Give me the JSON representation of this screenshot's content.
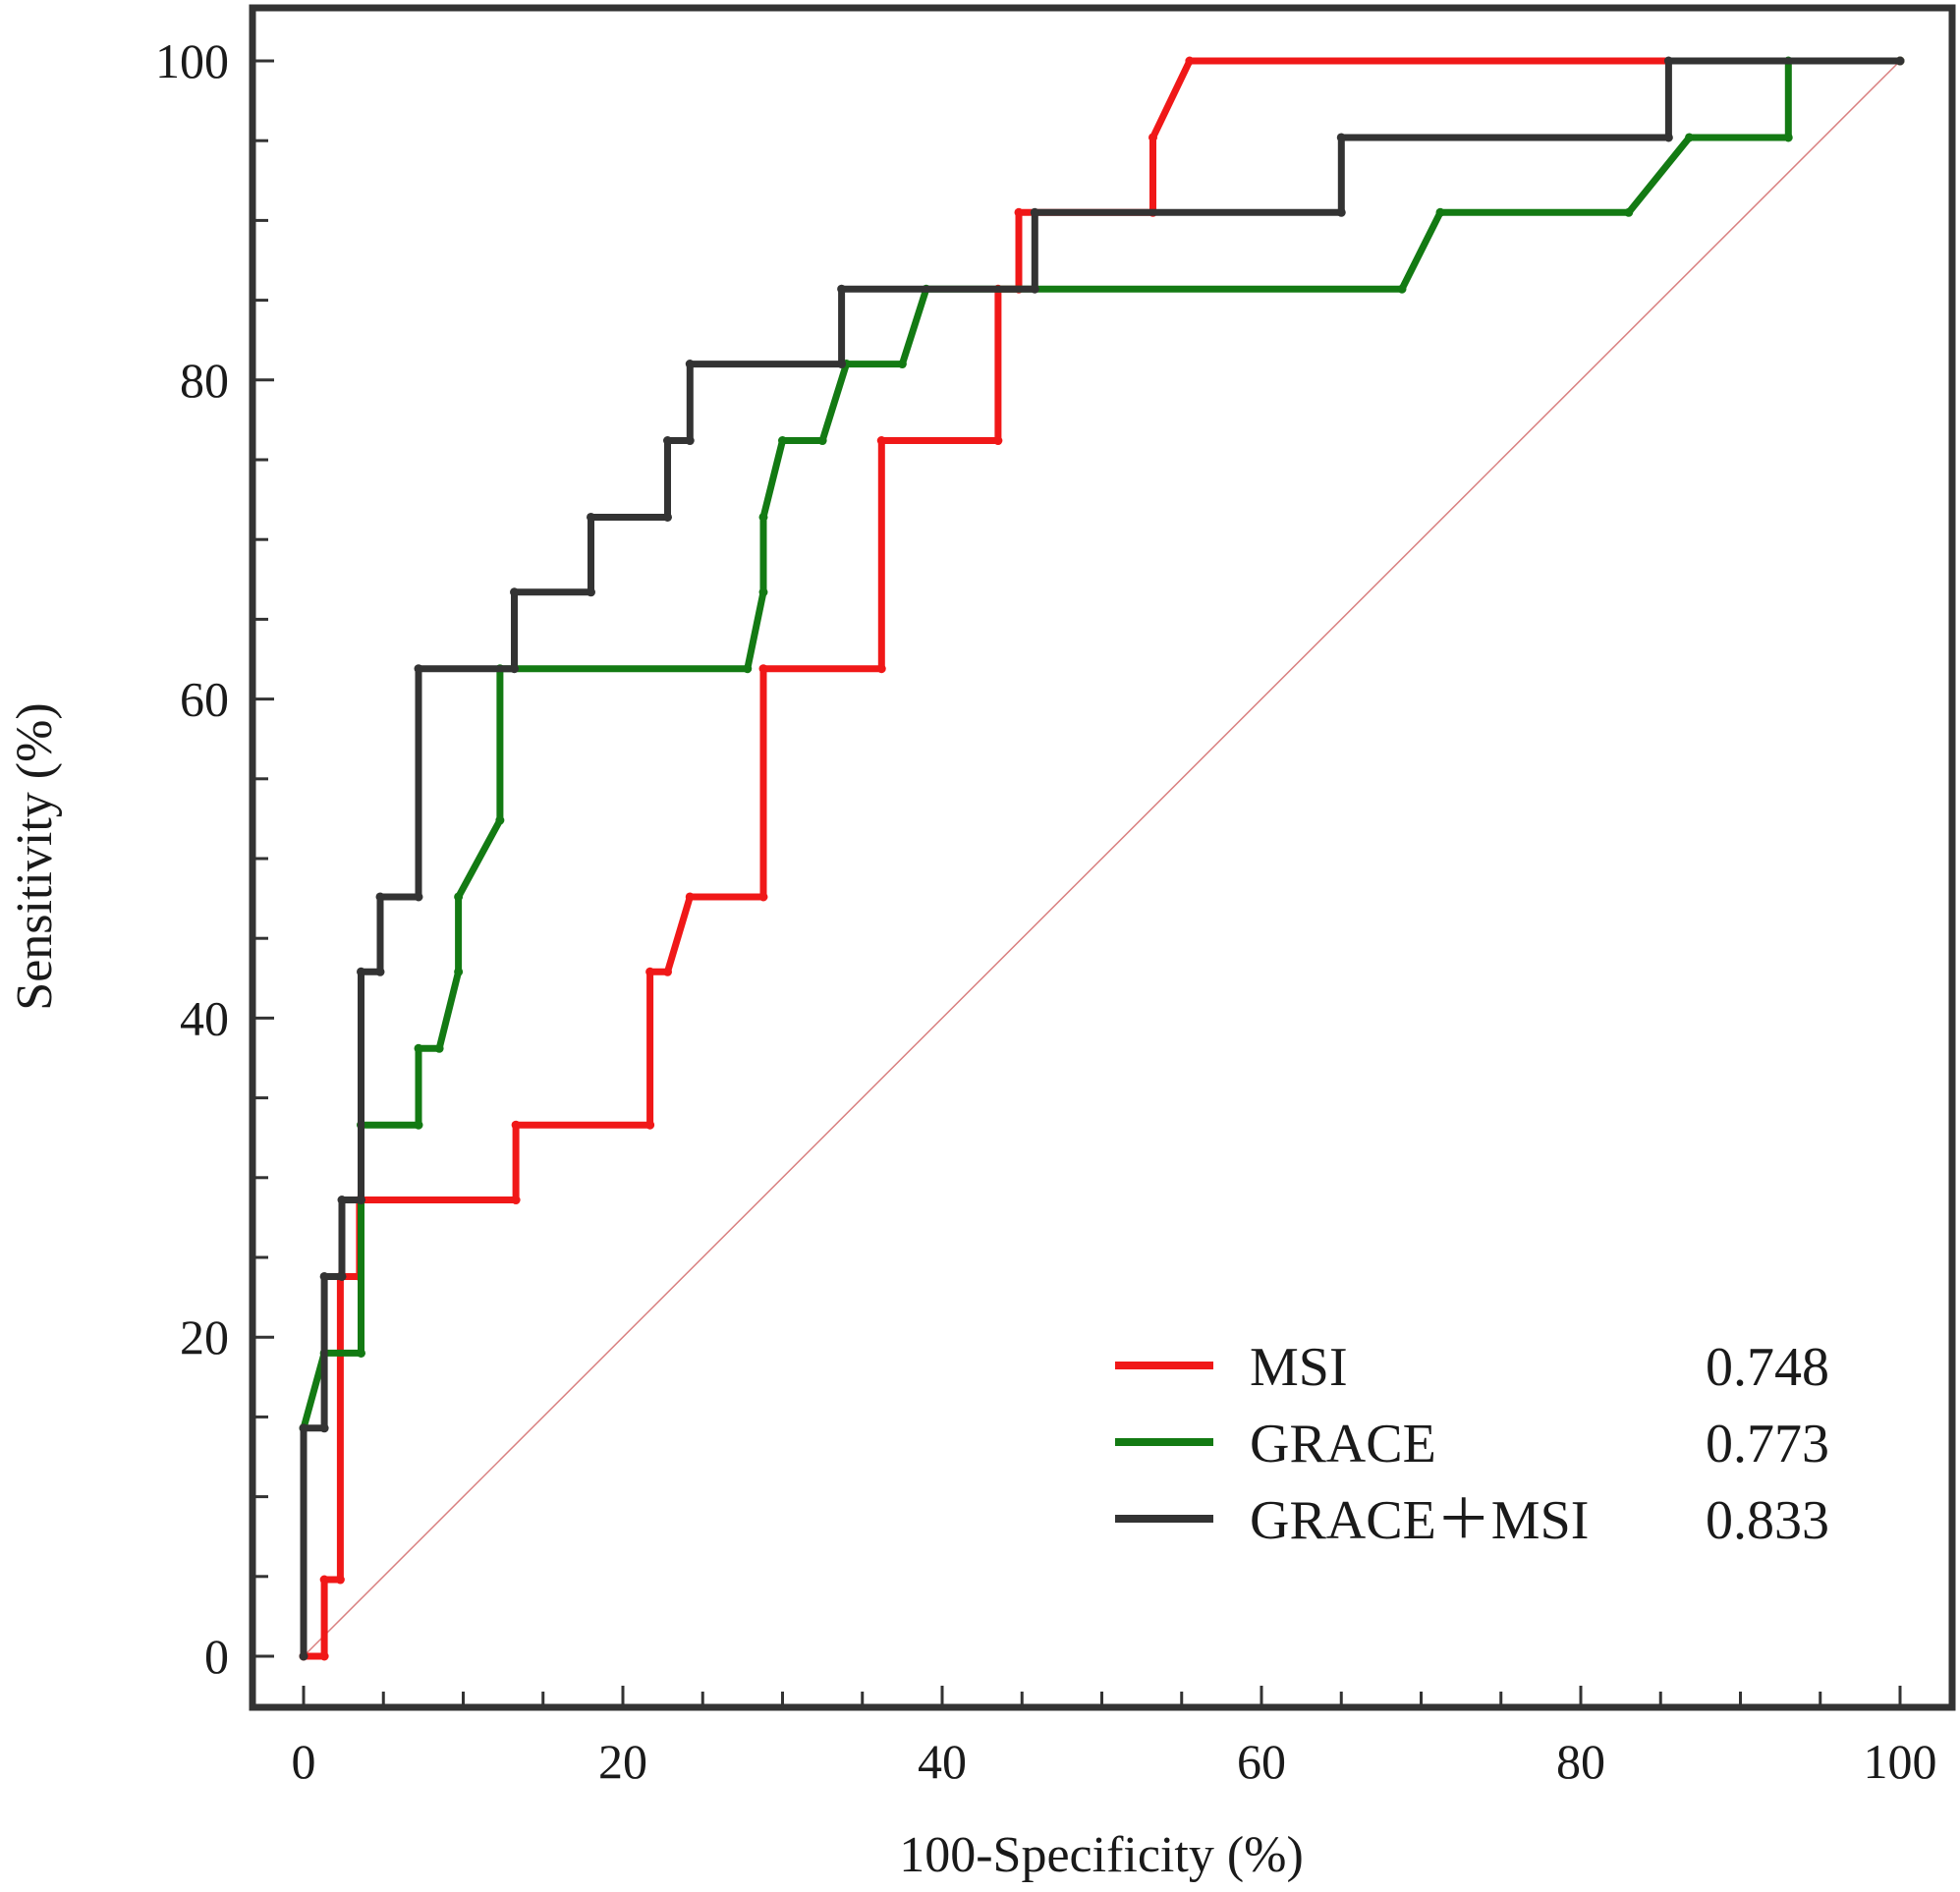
{
  "chart_data": {
    "type": "line",
    "title": "",
    "xlabel": "100-Specificity (%)",
    "ylabel": "Sensitivity (%)",
    "xlim": [
      0,
      100
    ],
    "ylim": [
      0,
      100
    ],
    "x_ticks": [
      "0",
      "20",
      "40",
      "60",
      "80",
      "100"
    ],
    "y_ticks": [
      "0",
      "20",
      "40",
      "60",
      "80",
      "100"
    ],
    "x_tick_values": [
      0,
      20,
      40,
      60,
      80,
      100
    ],
    "y_tick_values": [
      0,
      20,
      40,
      60,
      80,
      100
    ],
    "x_minor_step": 5,
    "y_minor_step": 5,
    "reference_line": {
      "x": [
        0,
        100
      ],
      "y": [
        0,
        100
      ],
      "color": "#d98080"
    },
    "legend_position": "bottom-right",
    "series": [
      {
        "name": "MSI",
        "auc": "0.748",
        "color": "#f01818",
        "x": [
          0,
          1.3,
          1.3,
          2.3,
          2.3,
          3.5,
          3.5,
          13.3,
          13.3,
          21.7,
          21.7,
          22.8,
          24.2,
          28.8,
          28.8,
          36.2,
          36.2,
          43.5,
          43.5,
          44.8,
          44.8,
          53.2,
          53.2,
          55.5,
          100
        ],
        "y": [
          0,
          0,
          4.8,
          4.8,
          23.8,
          23.8,
          28.6,
          28.6,
          33.3,
          33.3,
          42.9,
          42.9,
          47.6,
          47.6,
          61.9,
          61.9,
          76.2,
          76.2,
          85.7,
          85.7,
          90.5,
          90.5,
          95.2,
          100,
          100
        ]
      },
      {
        "name": "GRACE",
        "auc": "0.773",
        "color": "#137a13",
        "x": [
          0,
          1.3,
          3.6,
          3.6,
          7.2,
          7.2,
          8.5,
          9.7,
          9.7,
          12.3,
          12.3,
          27.8,
          28.8,
          28.8,
          30,
          32.5,
          34,
          37.5,
          39,
          68.8,
          71.2,
          83,
          86.8,
          93,
          93,
          100
        ],
        "y": [
          14.3,
          19,
          19,
          33.3,
          33.3,
          38.1,
          38.1,
          42.9,
          47.6,
          52.4,
          61.9,
          61.9,
          66.7,
          71.4,
          76.2,
          76.2,
          81,
          81,
          85.7,
          85.7,
          90.5,
          90.5,
          95.2,
          95.2,
          100,
          100
        ]
      },
      {
        "name": "GRACE＋MSI",
        "auc": "0.833",
        "color": "#333333",
        "x": [
          0,
          0,
          1.3,
          1.3,
          2.4,
          2.4,
          3.6,
          3.6,
          4.8,
          4.8,
          7.2,
          7.2,
          13.2,
          13.2,
          18,
          18,
          22.8,
          22.8,
          24.2,
          24.2,
          33.7,
          33.7,
          45.8,
          45.8,
          65,
          65,
          85.5,
          85.5,
          100
        ],
        "y": [
          0,
          14.3,
          14.3,
          23.8,
          23.8,
          28.6,
          28.6,
          42.9,
          42.9,
          47.6,
          47.6,
          61.9,
          61.9,
          66.7,
          66.7,
          71.4,
          71.4,
          76.2,
          76.2,
          81,
          81,
          85.7,
          85.7,
          90.5,
          90.5,
          95.2,
          95.2,
          100,
          100
        ]
      }
    ]
  }
}
